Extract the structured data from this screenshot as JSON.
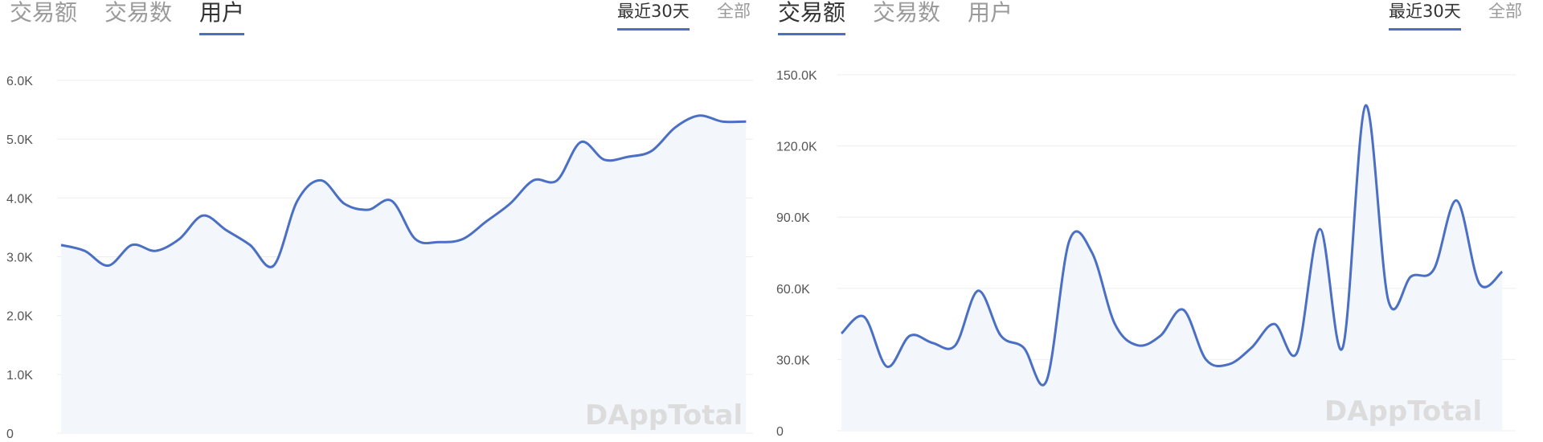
{
  "panels": [
    {
      "tabs": [
        "交易额",
        "交易数",
        "用户"
      ],
      "active_tab": 2,
      "ranges": [
        "最近30天",
        "全部"
      ],
      "active_range": 0,
      "watermark": "DAppTotal",
      "chart_data": {
        "type": "area",
        "y_ticks": [
          "0",
          "1.0K",
          "2.0K",
          "3.0K",
          "4.0K",
          "5.0K",
          "6.0K"
        ],
        "ylim": [
          0,
          6000
        ],
        "grid": true,
        "line_color": "#4a6fc4",
        "fill_color": "#f3f6fb",
        "values": [
          3200,
          3100,
          2850,
          3200,
          3100,
          3300,
          3700,
          3450,
          3200,
          2850,
          3950,
          4300,
          3900,
          3800,
          3950,
          3300,
          3250,
          3300,
          3600,
          3900,
          4300,
          4300,
          4950,
          4650,
          4700,
          4800,
          5200,
          5400,
          5300,
          5300
        ]
      }
    },
    {
      "tabs": [
        "交易额",
        "交易数",
        "用户"
      ],
      "active_tab": 0,
      "ranges": [
        "最近30天",
        "全部"
      ],
      "active_range": 0,
      "watermark": "DAppTotal",
      "chart_data": {
        "type": "area",
        "y_ticks": [
          "0",
          "30.0K",
          "60.0K",
          "90.0K",
          "120.0K",
          "150.0K"
        ],
        "ylim": [
          0,
          150000
        ],
        "grid": true,
        "line_color": "#4a6fc4",
        "fill_color": "#f3f6fb",
        "values": [
          41000,
          48000,
          27000,
          40000,
          37000,
          36000,
          59000,
          40000,
          35000,
          21000,
          80000,
          75000,
          45000,
          36000,
          40000,
          51000,
          30000,
          28000,
          35000,
          45000,
          33000,
          85000,
          35000,
          137000,
          55000,
          65000,
          68000,
          97000,
          62000,
          67000
        ]
      }
    }
  ]
}
